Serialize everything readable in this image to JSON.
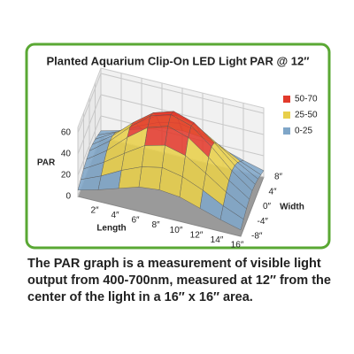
{
  "chart_data": {
    "type": "surface",
    "title": "Planted Aquarium Clip-On LED Light PAR @ 12″",
    "zlabel": "PAR",
    "xlabel": "Length",
    "ylabel": "Width",
    "x": [
      0,
      2,
      4,
      6,
      8,
      10,
      12,
      14,
      16
    ],
    "y": [
      -8,
      -6,
      -4,
      -2,
      0,
      2,
      4,
      6,
      8
    ],
    "z": [
      [
        6,
        11,
        17,
        23,
        25,
        23,
        17,
        11,
        6
      ],
      [
        9,
        17,
        27,
        35,
        39,
        35,
        27,
        17,
        9
      ],
      [
        12,
        23,
        36,
        48,
        53,
        48,
        36,
        23,
        12
      ],
      [
        14,
        27,
        44,
        58,
        64,
        58,
        44,
        27,
        14
      ],
      [
        15,
        29,
        47,
        62,
        68,
        62,
        47,
        29,
        15
      ],
      [
        14,
        27,
        44,
        58,
        64,
        58,
        44,
        27,
        14
      ],
      [
        12,
        23,
        36,
        48,
        53,
        48,
        36,
        23,
        12
      ],
      [
        9,
        17,
        27,
        35,
        39,
        35,
        27,
        17,
        9
      ],
      [
        6,
        11,
        17,
        23,
        25,
        23,
        17,
        11,
        6
      ]
    ],
    "xlim": [
      0,
      16
    ],
    "ylim": [
      -8,
      8
    ],
    "zlim": [
      0,
      65
    ],
    "xticks": [
      {
        "value": 2,
        "label": "2″"
      },
      {
        "value": 4,
        "label": "4″"
      },
      {
        "value": 6,
        "label": "6″"
      },
      {
        "value": 8,
        "label": "8″"
      },
      {
        "value": 10,
        "label": "10″"
      },
      {
        "value": 12,
        "label": "12″"
      },
      {
        "value": 14,
        "label": "14″"
      },
      {
        "value": 16,
        "label": "16″"
      }
    ],
    "yticks": [
      {
        "value": -8,
        "label": "-8″"
      },
      {
        "value": -4,
        "label": "-4″"
      },
      {
        "value": 0,
        "label": "0″"
      },
      {
        "value": 4,
        "label": "4″"
      },
      {
        "value": 8,
        "label": "8″"
      }
    ],
    "zticks": [
      0,
      20,
      40,
      60
    ],
    "bands": [
      {
        "name": "50-70",
        "color": "#e23a2c",
        "min": 50,
        "max": 70
      },
      {
        "name": "25-50",
        "color": "#e8cf4a",
        "min": 25,
        "max": 50
      },
      {
        "name": "0-25",
        "color": "#7fa6c8",
        "min": 0,
        "max": 25
      }
    ]
  },
  "caption": "The PAR graph is a measurement of visible light output from 400-700nm, measured at 12″ from the center of the light in a 16″ x 16″ area."
}
